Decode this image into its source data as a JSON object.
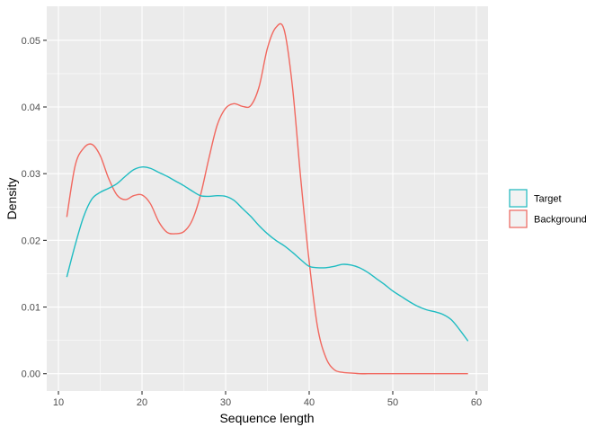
{
  "chart_data": {
    "type": "line",
    "xlabel": "Sequence length",
    "ylabel": "Density",
    "xlim": [
      8.6,
      61.4
    ],
    "ylim": [
      -0.0026,
      0.0551
    ],
    "x_ticks": [
      10,
      20,
      30,
      40,
      50,
      60
    ],
    "x_tick_labels": [
      "10",
      "20",
      "30",
      "40",
      "50",
      "60"
    ],
    "y_ticks": [
      0.0,
      0.01,
      0.02,
      0.03,
      0.04,
      0.05
    ],
    "y_tick_labels": [
      "0.00",
      "0.01",
      "0.02",
      "0.03",
      "0.04",
      "0.05"
    ],
    "grid": true,
    "legend_position": "right",
    "series": [
      {
        "name": "Target",
        "color": "#1fbcc2",
        "x": [
          11,
          12,
          13,
          14,
          15,
          16,
          17,
          18,
          19,
          20,
          21,
          22,
          23,
          24,
          25,
          26,
          27,
          28,
          29,
          30,
          31,
          32,
          33,
          34,
          35,
          36,
          37,
          38,
          39,
          40,
          41,
          42,
          43,
          44,
          45,
          46,
          47,
          48,
          49,
          50,
          51,
          52,
          53,
          54,
          55,
          56,
          57,
          58,
          59
        ],
        "y": [
          0.0145,
          0.0193,
          0.0235,
          0.0262,
          0.0272,
          0.0278,
          0.0285,
          0.0296,
          0.0306,
          0.031,
          0.0308,
          0.0302,
          0.0296,
          0.0289,
          0.0282,
          0.0274,
          0.0267,
          0.0266,
          0.0267,
          0.0266,
          0.026,
          0.0248,
          0.0236,
          0.0222,
          0.021,
          0.02,
          0.0192,
          0.0182,
          0.0171,
          0.0161,
          0.0159,
          0.0159,
          0.0161,
          0.0164,
          0.0163,
          0.0159,
          0.0152,
          0.0143,
          0.0134,
          0.0124,
          0.0116,
          0.0108,
          0.0101,
          0.0096,
          0.0093,
          0.0089,
          0.0081,
          0.0066,
          0.0049
        ]
      },
      {
        "name": "Background",
        "color": "#f1685f",
        "x": [
          11,
          12,
          13,
          14,
          15,
          16,
          17,
          18,
          19,
          20,
          21,
          22,
          23,
          24,
          25,
          26,
          27,
          28,
          29,
          30,
          31,
          32,
          33,
          34,
          35,
          36,
          37,
          38,
          39,
          40,
          41,
          42,
          43,
          44,
          45,
          46,
          47,
          48,
          49,
          50,
          51,
          52,
          53,
          54,
          55,
          56,
          57,
          58,
          59
        ],
        "y": [
          0.0235,
          0.0312,
          0.0338,
          0.0344,
          0.0327,
          0.0293,
          0.0268,
          0.0261,
          0.0267,
          0.0268,
          0.0255,
          0.0228,
          0.0212,
          0.021,
          0.0213,
          0.023,
          0.0268,
          0.0323,
          0.0373,
          0.0398,
          0.0405,
          0.0401,
          0.0402,
          0.043,
          0.0488,
          0.0519,
          0.0516,
          0.043,
          0.0291,
          0.0168,
          0.007,
          0.0024,
          0.0006,
          0.0002,
          0.0001,
          0.0,
          0.0,
          0.0,
          0.0,
          0.0,
          0.0,
          0.0,
          0.0,
          0.0,
          0.0,
          0.0,
          0.0,
          0.0,
          0.0
        ]
      }
    ]
  }
}
